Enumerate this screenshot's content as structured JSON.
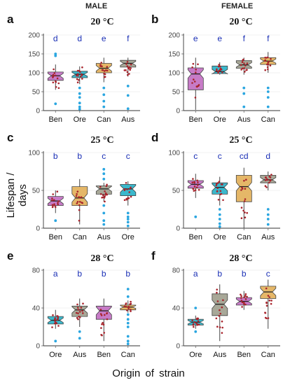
{
  "header": {
    "male": "MALE",
    "female": "FEMALE"
  },
  "ylabel": "Lifespan / days",
  "xlabel": "Origin  of  strain",
  "colors": {
    "Ben": "#c77bc7",
    "Ore": "#3bb8cc",
    "Can": "#e5b768",
    "Aus": "#a8a898",
    "points": "#a8232b",
    "outliers": "#2aa6e0",
    "letters": "#1a2fb5"
  },
  "chart_data": [
    {
      "type": "box",
      "panel": "a",
      "title": "20 °C",
      "ylim": [
        0,
        200
      ],
      "yticks": [
        "0",
        "50",
        "100",
        "150",
        "200"
      ],
      "categories": [
        "Ben",
        "Ore",
        "Can",
        "Aus"
      ],
      "letters": [
        "d",
        "d",
        "e",
        "f"
      ],
      "boxes": [
        {
          "q1": 80,
          "median": 92,
          "q3": 102,
          "whisker_low": 55,
          "whisker_high": 122,
          "outliers": [
            150,
            145,
            18
          ]
        },
        {
          "q1": 87,
          "median": 96,
          "q3": 104,
          "whisker_low": 70,
          "whisker_high": 117,
          "outliers": [
            60,
            45,
            35,
            20,
            10,
            4
          ]
        },
        {
          "q1": 100,
          "median": 112,
          "q3": 125,
          "whisker_low": 75,
          "whisker_high": 140,
          "outliers": [
            60,
            42,
            25,
            10
          ]
        },
        {
          "q1": 115,
          "median": 125,
          "q3": 133,
          "whisker_low": 90,
          "whisker_high": 140,
          "outliers": [
            65,
            40,
            5
          ]
        }
      ]
    },
    {
      "type": "box",
      "panel": "b",
      "title": "20 °C",
      "ylim": [
        0,
        200
      ],
      "yticks": [
        "0",
        "50",
        "100",
        "150",
        "200"
      ],
      "categories": [
        "Ben",
        "Ore",
        "Aus",
        "Can"
      ],
      "letters": [
        "e",
        "e",
        "f",
        "f"
      ],
      "boxes": [
        {
          "q1": 55,
          "median": 97,
          "q3": 113,
          "whisker_low": 2,
          "whisker_high": 140,
          "outliers": []
        },
        {
          "q1": 98,
          "median": 103,
          "q3": 118,
          "whisker_low": 95,
          "whisker_high": 128,
          "outliers": []
        },
        {
          "q1": 112,
          "median": 121,
          "q3": 132,
          "whisker_low": 95,
          "whisker_high": 140,
          "outliers": [
            60,
            45,
            10
          ]
        },
        {
          "q1": 122,
          "median": 131,
          "q3": 140,
          "whisker_low": 100,
          "whisker_high": 155,
          "outliers": [
            60,
            50,
            35,
            10
          ]
        }
      ]
    },
    {
      "type": "box",
      "panel": "c",
      "title": "25 °C",
      "ylim": [
        0,
        100
      ],
      "yticks": [
        "0",
        "50",
        "100"
      ],
      "categories": [
        "Ben",
        "Can",
        "Aus",
        "Ore"
      ],
      "letters": [
        "b",
        "b",
        "c",
        "c"
      ],
      "boxes": [
        {
          "q1": 30,
          "median": 36,
          "q3": 42,
          "whisker_low": 20,
          "whisker_high": 50,
          "outliers": [
            10
          ]
        },
        {
          "q1": 30,
          "median": 40,
          "q3": 55,
          "whisker_low": 5,
          "whisker_high": 65,
          "outliers": []
        },
        {
          "q1": 45,
          "median": 52,
          "q3": 56,
          "whisker_low": 35,
          "whisker_high": 60,
          "outliers": [
            78,
            72,
            65,
            30,
            20,
            10,
            5
          ]
        },
        {
          "q1": 43,
          "median": 52,
          "q3": 58,
          "whisker_low": 30,
          "whisker_high": 62,
          "outliers": [
            20,
            15,
            12,
            8,
            3
          ]
        }
      ]
    },
    {
      "type": "box",
      "panel": "d",
      "title": "25 °C",
      "ylim": [
        0,
        100
      ],
      "yticks": [
        "0",
        "50",
        "100"
      ],
      "categories": [
        "Ore",
        "Can",
        "Aus"
      ],
      "leading_category": "Ben",
      "letters": [
        "c",
        "c",
        "cd",
        "d"
      ],
      "boxes": [
        {
          "q1": 53,
          "median": 58,
          "q3": 63,
          "whisker_low": 40,
          "whisker_high": 72,
          "outliers": [
            15
          ]
        },
        {
          "q1": 45,
          "median": 54,
          "q3": 60,
          "whisker_low": 30,
          "whisker_high": 68,
          "outliers": [
            25,
            18,
            12,
            6,
            2
          ]
        },
        {
          "q1": 35,
          "median": 55,
          "q3": 70,
          "whisker_low": 0,
          "whisker_high": 80,
          "outliers": []
        },
        {
          "q1": 60,
          "median": 64,
          "q3": 70,
          "whisker_low": 50,
          "whisker_high": 75,
          "outliers": [
            25,
            18,
            12,
            5
          ]
        }
      ]
    },
    {
      "type": "box",
      "panel": "e",
      "title": "28 °C",
      "ylim": [
        0,
        80
      ],
      "yticks": [
        "0",
        "40",
        "80"
      ],
      "categories": [
        "Ore",
        "Aus",
        "Ben",
        "Can"
      ],
      "letters": [
        "a",
        "b",
        "b",
        "b"
      ],
      "boxes": [
        {
          "q1": 23,
          "median": 27,
          "q3": 31,
          "whisker_low": 18,
          "whisker_high": 38,
          "outliers": [
            5
          ]
        },
        {
          "q1": 31,
          "median": 38,
          "q3": 42,
          "whisker_low": 20,
          "whisker_high": 50,
          "outliers": [
            15,
            8
          ]
        },
        {
          "q1": 28,
          "median": 37,
          "q3": 42,
          "whisker_low": 5,
          "whisker_high": 50,
          "outliers": []
        },
        {
          "q1": 38,
          "median": 41,
          "q3": 43,
          "whisker_low": 35,
          "whisker_high": 48,
          "outliers": [
            60,
            52,
            33,
            28,
            24,
            20,
            10,
            5,
            2
          ]
        }
      ]
    },
    {
      "type": "box",
      "panel": "f",
      "title": "28 °C",
      "ylim": [
        0,
        80
      ],
      "yticks": [
        "0",
        "40",
        "80"
      ],
      "categories": [
        "Ore",
        "Aus",
        "Ben",
        "Can"
      ],
      "letters": [
        "a",
        "b",
        "b",
        "c"
      ],
      "boxes": [
        {
          "q1": 22,
          "median": 25,
          "q3": 28,
          "whisker_low": 18,
          "whisker_high": 32,
          "outliers": [
            40,
            15
          ]
        },
        {
          "q1": 32,
          "median": 44,
          "q3": 55,
          "whisker_low": 5,
          "whisker_high": 65,
          "outliers": []
        },
        {
          "q1": 43,
          "median": 47,
          "q3": 51,
          "whisker_low": 38,
          "whisker_high": 58,
          "outliers": []
        },
        {
          "q1": 50,
          "median": 57,
          "q3": 63,
          "whisker_low": 18,
          "whisker_high": 70,
          "outliers": []
        }
      ]
    }
  ]
}
